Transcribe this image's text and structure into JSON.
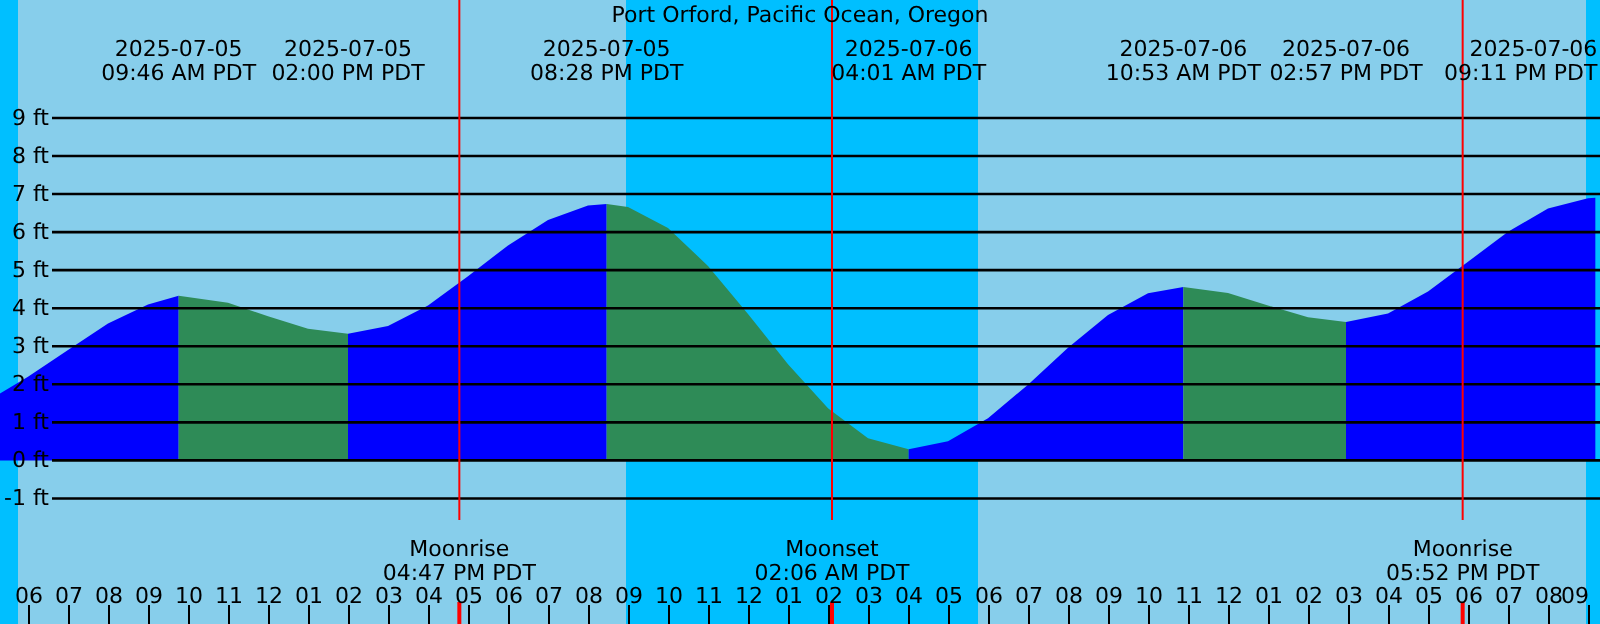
{
  "chart_data": {
    "type": "area",
    "title": "Port Orford, Pacific Ocean, Oregon",
    "xlim": [
      "2025-07-05T05:18",
      "2025-07-06T21:18"
    ],
    "ylim": [
      -4.3,
      12.1
    ],
    "xticks": [
      {
        "value": "2025-07-05T06:00",
        "label": "06"
      },
      {
        "value": "2025-07-05T07:00",
        "label": "07"
      },
      {
        "value": "2025-07-05T08:00",
        "label": "08"
      },
      {
        "value": "2025-07-05T09:00",
        "label": "09"
      },
      {
        "value": "2025-07-05T10:00",
        "label": "10"
      },
      {
        "value": "2025-07-05T11:00",
        "label": "11"
      },
      {
        "value": "2025-07-05T12:00",
        "label": "12"
      },
      {
        "value": "2025-07-05T13:00",
        "label": "01"
      },
      {
        "value": "2025-07-05T14:00",
        "label": "02"
      },
      {
        "value": "2025-07-05T15:00",
        "label": "03"
      },
      {
        "value": "2025-07-05T16:00",
        "label": "04"
      },
      {
        "value": "2025-07-05T17:00",
        "label": "05"
      },
      {
        "value": "2025-07-05T18:00",
        "label": "06"
      },
      {
        "value": "2025-07-05T19:00",
        "label": "07"
      },
      {
        "value": "2025-07-05T20:00",
        "label": "08"
      },
      {
        "value": "2025-07-05T21:00",
        "label": "09"
      },
      {
        "value": "2025-07-05T22:00",
        "label": "10"
      },
      {
        "value": "2025-07-05T23:00",
        "label": "11"
      },
      {
        "value": "2025-07-06T00:00",
        "label": "12"
      },
      {
        "value": "2025-07-06T01:00",
        "label": "01"
      },
      {
        "value": "2025-07-06T02:00",
        "label": "02"
      },
      {
        "value": "2025-07-06T03:00",
        "label": "03"
      },
      {
        "value": "2025-07-06T04:00",
        "label": "04"
      },
      {
        "value": "2025-07-06T05:00",
        "label": "05"
      },
      {
        "value": "2025-07-06T06:00",
        "label": "06"
      },
      {
        "value": "2025-07-06T07:00",
        "label": "07"
      },
      {
        "value": "2025-07-06T08:00",
        "label": "08"
      },
      {
        "value": "2025-07-06T09:00",
        "label": "09"
      },
      {
        "value": "2025-07-06T10:00",
        "label": "10"
      },
      {
        "value": "2025-07-06T11:00",
        "label": "11"
      },
      {
        "value": "2025-07-06T12:00",
        "label": "12"
      },
      {
        "value": "2025-07-06T13:00",
        "label": "01"
      },
      {
        "value": "2025-07-06T14:00",
        "label": "02"
      },
      {
        "value": "2025-07-06T15:00",
        "label": "03"
      },
      {
        "value": "2025-07-06T16:00",
        "label": "04"
      },
      {
        "value": "2025-07-06T17:00",
        "label": "05"
      },
      {
        "value": "2025-07-06T18:00",
        "label": "06"
      },
      {
        "value": "2025-07-06T19:00",
        "label": "07"
      },
      {
        "value": "2025-07-06T20:00",
        "label": "08"
      },
      {
        "value": "2025-07-06T21:00",
        "label": "09"
      }
    ],
    "yticks": [
      {
        "value": -1,
        "label": "-1 ft"
      },
      {
        "value": 0,
        "label": "0 ft"
      },
      {
        "value": 1,
        "label": "1 ft"
      },
      {
        "value": 2,
        "label": "2 ft"
      },
      {
        "value": 3,
        "label": "3 ft"
      },
      {
        "value": 4,
        "label": "4 ft"
      },
      {
        "value": 5,
        "label": "5 ft"
      },
      {
        "value": 6,
        "label": "6 ft"
      },
      {
        "value": 7,
        "label": "7 ft"
      },
      {
        "value": 8,
        "label": "8 ft"
      },
      {
        "value": 9,
        "label": "9 ft"
      }
    ],
    "grid": "y",
    "series": [
      {
        "color": "#0000ff",
        "x": [
          "2025-07-05T05:18",
          "2025-07-05T06:00",
          "2025-07-05T07:00",
          "2025-07-05T08:00",
          "2025-07-05T09:00",
          "2025-07-05T09:46"
        ],
        "values": [
          1.76,
          2.2,
          2.9,
          3.6,
          4.1,
          4.33
        ]
      },
      {
        "color": "#2e8b57",
        "x": [
          "2025-07-05T09:46",
          "2025-07-05T11:00",
          "2025-07-05T12:00",
          "2025-07-05T13:00",
          "2025-07-05T14:00"
        ],
        "values": [
          4.33,
          4.14,
          3.79,
          3.46,
          3.33
        ]
      },
      {
        "color": "#0000ff",
        "x": [
          "2025-07-05T14:00",
          "2025-07-05T15:00",
          "2025-07-05T16:00",
          "2025-07-05T17:00",
          "2025-07-05T18:00",
          "2025-07-05T19:00",
          "2025-07-05T20:00",
          "2025-07-05T20:28"
        ],
        "values": [
          3.33,
          3.53,
          4.07,
          4.84,
          5.65,
          6.32,
          6.7,
          6.74
        ]
      },
      {
        "color": "#2e8b57",
        "x": [
          "2025-07-05T20:28",
          "2025-07-05T21:00",
          "2025-07-05T22:00",
          "2025-07-05T23:00",
          "2025-07-06T00:00",
          "2025-07-06T01:00",
          "2025-07-06T02:00",
          "2025-07-06T03:00",
          "2025-07-06T04:01"
        ],
        "values": [
          6.74,
          6.66,
          6.11,
          5.11,
          3.85,
          2.53,
          1.37,
          0.58,
          0.29
        ]
      },
      {
        "color": "#0000ff",
        "x": [
          "2025-07-06T04:01",
          "2025-07-06T05:00",
          "2025-07-06T06:00",
          "2025-07-06T07:00",
          "2025-07-06T08:00",
          "2025-07-06T09:00",
          "2025-07-06T10:00",
          "2025-07-06T10:53"
        ],
        "values": [
          0.29,
          0.5,
          1.11,
          1.99,
          2.96,
          3.82,
          4.39,
          4.56
        ]
      },
      {
        "color": "#2e8b57",
        "x": [
          "2025-07-06T10:53",
          "2025-07-06T12:00",
          "2025-07-06T13:00",
          "2025-07-06T14:00",
          "2025-07-06T14:57"
        ],
        "values": [
          4.56,
          4.4,
          4.07,
          3.76,
          3.64
        ]
      },
      {
        "color": "#0000ff",
        "x": [
          "2025-07-06T14:57",
          "2025-07-06T16:00",
          "2025-07-06T17:00",
          "2025-07-06T18:00",
          "2025-07-06T19:00",
          "2025-07-06T20:00",
          "2025-07-06T21:00",
          "2025-07-06T21:11"
        ],
        "values": [
          3.64,
          3.86,
          4.44,
          5.22,
          6.01,
          6.62,
          6.89,
          6.9
        ]
      }
    ],
    "bands": [
      {
        "axis": "x",
        "from": "2025-07-05T05:18",
        "to": "2025-07-05T05:45",
        "color": "#00bfff"
      },
      {
        "axis": "x",
        "from": "2025-07-05T05:45",
        "to": "2025-07-05T20:57",
        "color": "#87ceeb"
      },
      {
        "axis": "x",
        "from": "2025-07-05T20:57",
        "to": "2025-07-06T05:45",
        "color": "#00bfff"
      },
      {
        "axis": "x",
        "from": "2025-07-06T05:45",
        "to": "2025-07-06T20:57",
        "color": "#87ceeb"
      },
      {
        "axis": "x",
        "from": "2025-07-06T20:57",
        "to": "2025-07-06T21:18",
        "color": "#00bfff"
      }
    ],
    "ref_lines": [
      {
        "axis": "x",
        "value": "2025-07-05T16:47",
        "label": "Moonrise\n04:47 PM PDT",
        "color": "#ff0000"
      },
      {
        "axis": "x",
        "value": "2025-07-06T02:06",
        "label": "Moonset\n02:06 AM PDT",
        "color": "#ff0000"
      },
      {
        "axis": "x",
        "value": "2025-07-06T17:52",
        "label": "Moonrise\n05:52 PM PDT",
        "color": "#ff0000"
      }
    ],
    "annotations": [
      "2025-07-05\n09:46 AM PDT",
      "2025-07-05\n02:00 PM PDT",
      "2025-07-05\n08:28 PM PDT",
      "2025-07-06\n04:01 AM PDT",
      "2025-07-06\n10:53 AM PDT",
      "2025-07-06\n02:57 PM PDT",
      "2025-07-06\n09:11 PM PDT"
    ]
  }
}
